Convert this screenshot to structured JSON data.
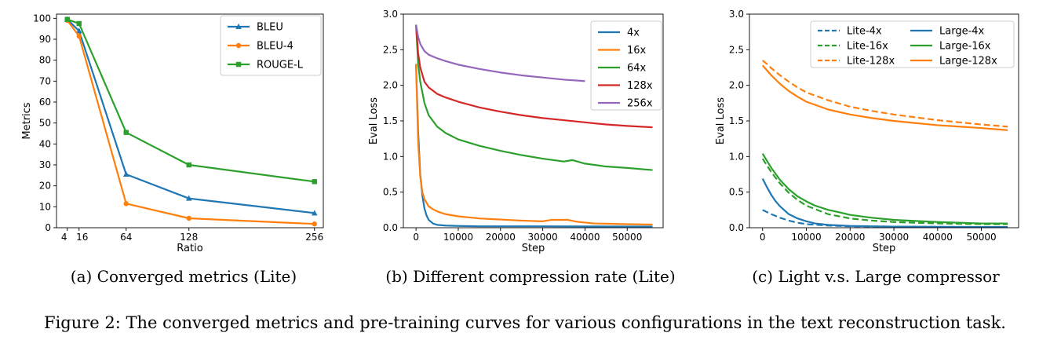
{
  "figure_caption": "Figure 2: The converged metrics and pre-training curves for various configurations in the text reconstruction task.",
  "colors": {
    "blue": "#1f77b4",
    "orange": "#ff7f0e",
    "green": "#2ca02c",
    "red": "#d62728",
    "purple": "#9467bd"
  },
  "chart_data": [
    {
      "id": "a",
      "type": "line",
      "caption": "(a) Converged metrics (Lite)",
      "title": "",
      "xlabel": "Ratio",
      "ylabel": "Metrics",
      "xlim": [
        -7,
        265
      ],
      "ylim": [
        0,
        102
      ],
      "xticks": [
        4,
        16,
        64,
        128,
        256
      ],
      "xticklabels": [
        "4",
        "16",
        "64",
        "128",
        "256"
      ],
      "yticks": [
        0,
        10,
        20,
        30,
        40,
        50,
        60,
        70,
        80,
        90,
        100
      ],
      "legend_position": "top-right",
      "legend_columns": 1,
      "series": [
        {
          "name": "BLEU",
          "color": "#1f77b4",
          "dash": "",
          "marker": "triangle",
          "x": [
            4,
            16,
            64,
            128,
            256
          ],
          "y": [
            99.5,
            94,
            25.5,
            14,
            7
          ]
        },
        {
          "name": "BLEU-4",
          "color": "#ff7f0e",
          "dash": "",
          "marker": "circle",
          "x": [
            4,
            16,
            64,
            128,
            256
          ],
          "y": [
            99,
            91.5,
            11.5,
            4.5,
            1.8
          ]
        },
        {
          "name": "ROUGE-L",
          "color": "#2ca02c",
          "dash": "",
          "marker": "square",
          "x": [
            4,
            16,
            64,
            128,
            256
          ],
          "y": [
            99.5,
            97.5,
            45.5,
            30,
            22
          ]
        }
      ]
    },
    {
      "id": "b",
      "type": "line",
      "caption": "(b) Different compression rate (Lite)",
      "title": "",
      "xlabel": "Step",
      "ylabel": "Eval Loss",
      "xlim": [
        -3000,
        58500
      ],
      "ylim": [
        0,
        3.0
      ],
      "xticks": [
        0,
        10000,
        20000,
        30000,
        40000,
        50000
      ],
      "xticklabels": [
        "0",
        "10000",
        "20000",
        "30000",
        "40000",
        "50000"
      ],
      "yticks": [
        0.0,
        0.5,
        1.0,
        1.5,
        2.0,
        2.5,
        3.0
      ],
      "yticklabels": [
        "0.0",
        "0.5",
        "1.0",
        "1.5",
        "2.0",
        "2.5",
        "3.0"
      ],
      "legend_position": "top-right",
      "legend_columns": 1,
      "series": [
        {
          "name": "4x",
          "color": "#1f77b4",
          "dash": "",
          "x": [
            0,
            500,
            1000,
            1500,
            2000,
            2500,
            3000,
            4000,
            5000,
            7000,
            10000,
            15000,
            20000,
            30000,
            40000,
            50000,
            56000
          ],
          "y": [
            2.3,
            1.35,
            0.75,
            0.45,
            0.27,
            0.17,
            0.11,
            0.06,
            0.04,
            0.03,
            0.025,
            0.02,
            0.02,
            0.02,
            0.018,
            0.017,
            0.017
          ]
        },
        {
          "name": "16x",
          "color": "#ff7f0e",
          "dash": "",
          "x": [
            0,
            500,
            1000,
            1500,
            2000,
            3000,
            4000,
            5000,
            7000,
            10000,
            15000,
            20000,
            25000,
            30000,
            32000,
            36000,
            38000,
            42000,
            50000,
            56000
          ],
          "y": [
            2.3,
            1.2,
            0.72,
            0.5,
            0.4,
            0.3,
            0.26,
            0.23,
            0.19,
            0.16,
            0.13,
            0.115,
            0.1,
            0.09,
            0.11,
            0.11,
            0.085,
            0.06,
            0.05,
            0.045
          ]
        },
        {
          "name": "64x",
          "color": "#2ca02c",
          "dash": "",
          "x": [
            0,
            500,
            1000,
            2000,
            3000,
            5000,
            7000,
            10000,
            15000,
            20000,
            25000,
            30000,
            35000,
            37000,
            40000,
            45000,
            50000,
            56000
          ],
          "y": [
            2.85,
            2.3,
            2.05,
            1.75,
            1.58,
            1.42,
            1.33,
            1.24,
            1.15,
            1.08,
            1.02,
            0.97,
            0.93,
            0.95,
            0.9,
            0.86,
            0.84,
            0.81
          ]
        },
        {
          "name": "128x",
          "color": "#d62728",
          "dash": "",
          "x": [
            0,
            500,
            1000,
            2000,
            3000,
            5000,
            7000,
            10000,
            15000,
            20000,
            25000,
            30000,
            35000,
            40000,
            45000,
            50000,
            56000
          ],
          "y": [
            2.85,
            2.45,
            2.25,
            2.05,
            1.97,
            1.88,
            1.83,
            1.77,
            1.69,
            1.63,
            1.58,
            1.54,
            1.51,
            1.48,
            1.45,
            1.43,
            1.41
          ]
        },
        {
          "name": "256x",
          "color": "#9467bd",
          "dash": "",
          "x": [
            0,
            500,
            1000,
            2000,
            3000,
            5000,
            7000,
            10000,
            15000,
            20000,
            25000,
            30000,
            35000,
            40000
          ],
          "y": [
            2.85,
            2.68,
            2.58,
            2.48,
            2.43,
            2.38,
            2.34,
            2.29,
            2.23,
            2.18,
            2.14,
            2.11,
            2.08,
            2.06
          ]
        }
      ]
    },
    {
      "id": "c",
      "type": "line",
      "caption": "(c) Light v.s. Large compressor",
      "title": "",
      "xlabel": "Step",
      "ylabel": "Eval Loss",
      "xlim": [
        -3000,
        58500
      ],
      "ylim": [
        0,
        3.0
      ],
      "xticks": [
        0,
        10000,
        20000,
        30000,
        40000,
        50000
      ],
      "xticklabels": [
        "0",
        "10000",
        "20000",
        "30000",
        "40000",
        "50000"
      ],
      "yticks": [
        0.0,
        0.5,
        1.0,
        1.5,
        2.0,
        2.5,
        3.0
      ],
      "yticklabels": [
        "0.0",
        "0.5",
        "1.0",
        "1.5",
        "2.0",
        "2.5",
        "3.0"
      ],
      "legend_position": "top-right",
      "legend_columns": 2,
      "series": [
        {
          "name": "Lite-4x",
          "color": "#1f77b4",
          "dash": "8,4",
          "x": [
            0,
            2000,
            4000,
            6000,
            8000,
            10000,
            15000,
            20000,
            30000,
            40000,
            50000,
            56000
          ],
          "y": [
            0.25,
            0.19,
            0.14,
            0.1,
            0.07,
            0.05,
            0.03,
            0.02,
            0.015,
            0.012,
            0.01,
            0.01
          ]
        },
        {
          "name": "Lite-16x",
          "color": "#2ca02c",
          "dash": "8,4",
          "x": [
            0,
            2000,
            4000,
            6000,
            8000,
            10000,
            15000,
            20000,
            25000,
            30000,
            40000,
            50000,
            56000
          ],
          "y": [
            0.97,
            0.78,
            0.62,
            0.49,
            0.39,
            0.31,
            0.19,
            0.13,
            0.1,
            0.08,
            0.06,
            0.05,
            0.05
          ]
        },
        {
          "name": "Lite-128x",
          "color": "#ff7f0e",
          "dash": "8,4",
          "x": [
            0,
            1000,
            2000,
            4000,
            6000,
            8000,
            10000,
            15000,
            20000,
            25000,
            30000,
            35000,
            40000,
            45000,
            50000,
            56000
          ],
          "y": [
            2.35,
            2.3,
            2.24,
            2.14,
            2.05,
            1.97,
            1.9,
            1.79,
            1.7,
            1.64,
            1.59,
            1.55,
            1.51,
            1.48,
            1.45,
            1.42
          ]
        },
        {
          "name": "Large-4x",
          "color": "#1f77b4",
          "dash": "",
          "x": [
            0,
            1000,
            2000,
            3000,
            4000,
            6000,
            8000,
            10000,
            12000,
            15000,
            20000,
            25000,
            30000,
            40000,
            50000,
            56000
          ],
          "y": [
            0.69,
            0.57,
            0.46,
            0.37,
            0.3,
            0.19,
            0.13,
            0.09,
            0.06,
            0.04,
            0.025,
            0.02,
            0.015,
            0.012,
            0.01,
            0.01
          ]
        },
        {
          "name": "Large-16x",
          "color": "#2ca02c",
          "dash": "",
          "x": [
            0,
            1000,
            2000,
            4000,
            6000,
            8000,
            10000,
            12000,
            15000,
            18000,
            20000,
            25000,
            30000,
            40000,
            50000,
            56000
          ],
          "y": [
            1.04,
            0.94,
            0.84,
            0.67,
            0.54,
            0.44,
            0.37,
            0.31,
            0.25,
            0.21,
            0.18,
            0.14,
            0.11,
            0.08,
            0.06,
            0.06
          ]
        },
        {
          "name": "Large-128x",
          "color": "#ff7f0e",
          "dash": "",
          "x": [
            0,
            1000,
            2000,
            4000,
            6000,
            8000,
            10000,
            15000,
            20000,
            25000,
            30000,
            35000,
            40000,
            45000,
            50000,
            56000
          ],
          "y": [
            2.28,
            2.21,
            2.14,
            2.02,
            1.92,
            1.84,
            1.77,
            1.66,
            1.59,
            1.54,
            1.5,
            1.47,
            1.44,
            1.42,
            1.4,
            1.37
          ]
        }
      ]
    }
  ]
}
